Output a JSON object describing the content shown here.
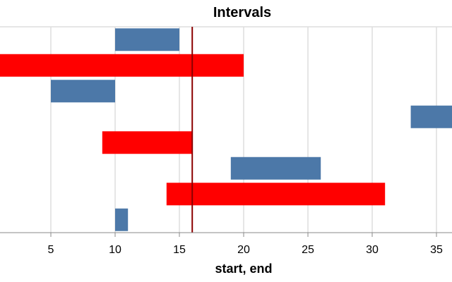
{
  "chart_data": {
    "type": "bar",
    "orientation": "horizontal-intervals",
    "title": "Intervals",
    "xlabel": "start, end",
    "ylabel": "",
    "xlim": [
      1,
      36.5
    ],
    "xticks": [
      5,
      10,
      15,
      20,
      25,
      30,
      35
    ],
    "grid": true,
    "intervals": [
      {
        "start": 10,
        "end": 15,
        "highlight": false
      },
      {
        "start": 1,
        "end": 20,
        "highlight": true
      },
      {
        "start": 5,
        "end": 10,
        "highlight": false
      },
      {
        "start": 33,
        "end": 37,
        "highlight": false
      },
      {
        "start": 9,
        "end": 16,
        "highlight": true
      },
      {
        "start": 19,
        "end": 26,
        "highlight": false
      },
      {
        "start": 14,
        "end": 31,
        "highlight": true
      },
      {
        "start": 10,
        "end": 11,
        "highlight": false
      }
    ],
    "rule": {
      "x": 16,
      "color": "#8b0000"
    },
    "colors": {
      "default": "#4c78a8",
      "highlight": "#ff0000"
    }
  }
}
